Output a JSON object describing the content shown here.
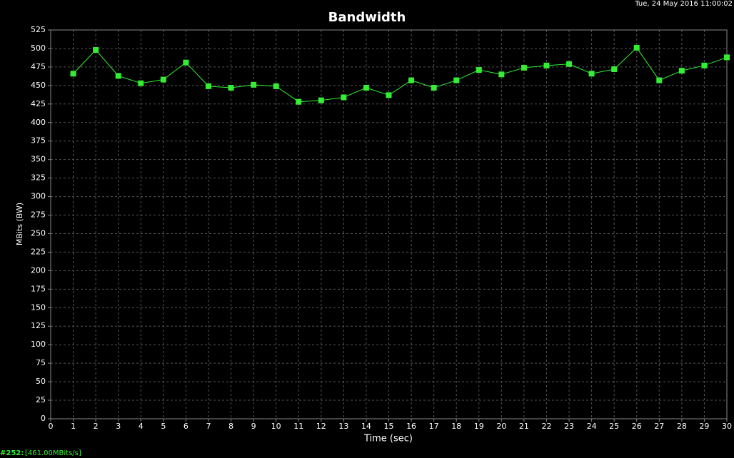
{
  "chart_data": {
    "type": "line",
    "title": "Bandwidth",
    "timestamp": "Tue, 24 May 2016 11:00:02",
    "xlabel": "Time (sec)",
    "ylabel": "MBits (BW)",
    "x": [
      1,
      2,
      3,
      4,
      5,
      6,
      7,
      8,
      9,
      10,
      11,
      12,
      13,
      14,
      15,
      16,
      17,
      18,
      19,
      20,
      21,
      22,
      23,
      24,
      25,
      26,
      27,
      28,
      29,
      30
    ],
    "series": [
      {
        "color": "#33ee33",
        "values": [
          466,
          498,
          463,
          453,
          458,
          481,
          449,
          447,
          451,
          449,
          428,
          430,
          434,
          447,
          437,
          457,
          447,
          457,
          471,
          465,
          474,
          477,
          479,
          466,
          472,
          501,
          457,
          470,
          477,
          488
        ]
      }
    ],
    "xlim": [
      0,
      30
    ],
    "xticks": [
      0,
      1,
      2,
      3,
      4,
      5,
      6,
      7,
      8,
      9,
      10,
      11,
      12,
      13,
      14,
      15,
      16,
      17,
      18,
      19,
      20,
      21,
      22,
      23,
      24,
      25,
      26,
      27,
      28,
      29,
      30
    ],
    "ylim": [
      0,
      525
    ],
    "yticks": [
      0,
      25,
      50,
      75,
      100,
      125,
      150,
      175,
      200,
      225,
      250,
      275,
      300,
      325,
      350,
      375,
      400,
      425,
      450,
      475,
      500,
      525
    ],
    "grid": true
  },
  "footer": {
    "id": "#252:",
    "status": "[461.00MBits/s]"
  }
}
